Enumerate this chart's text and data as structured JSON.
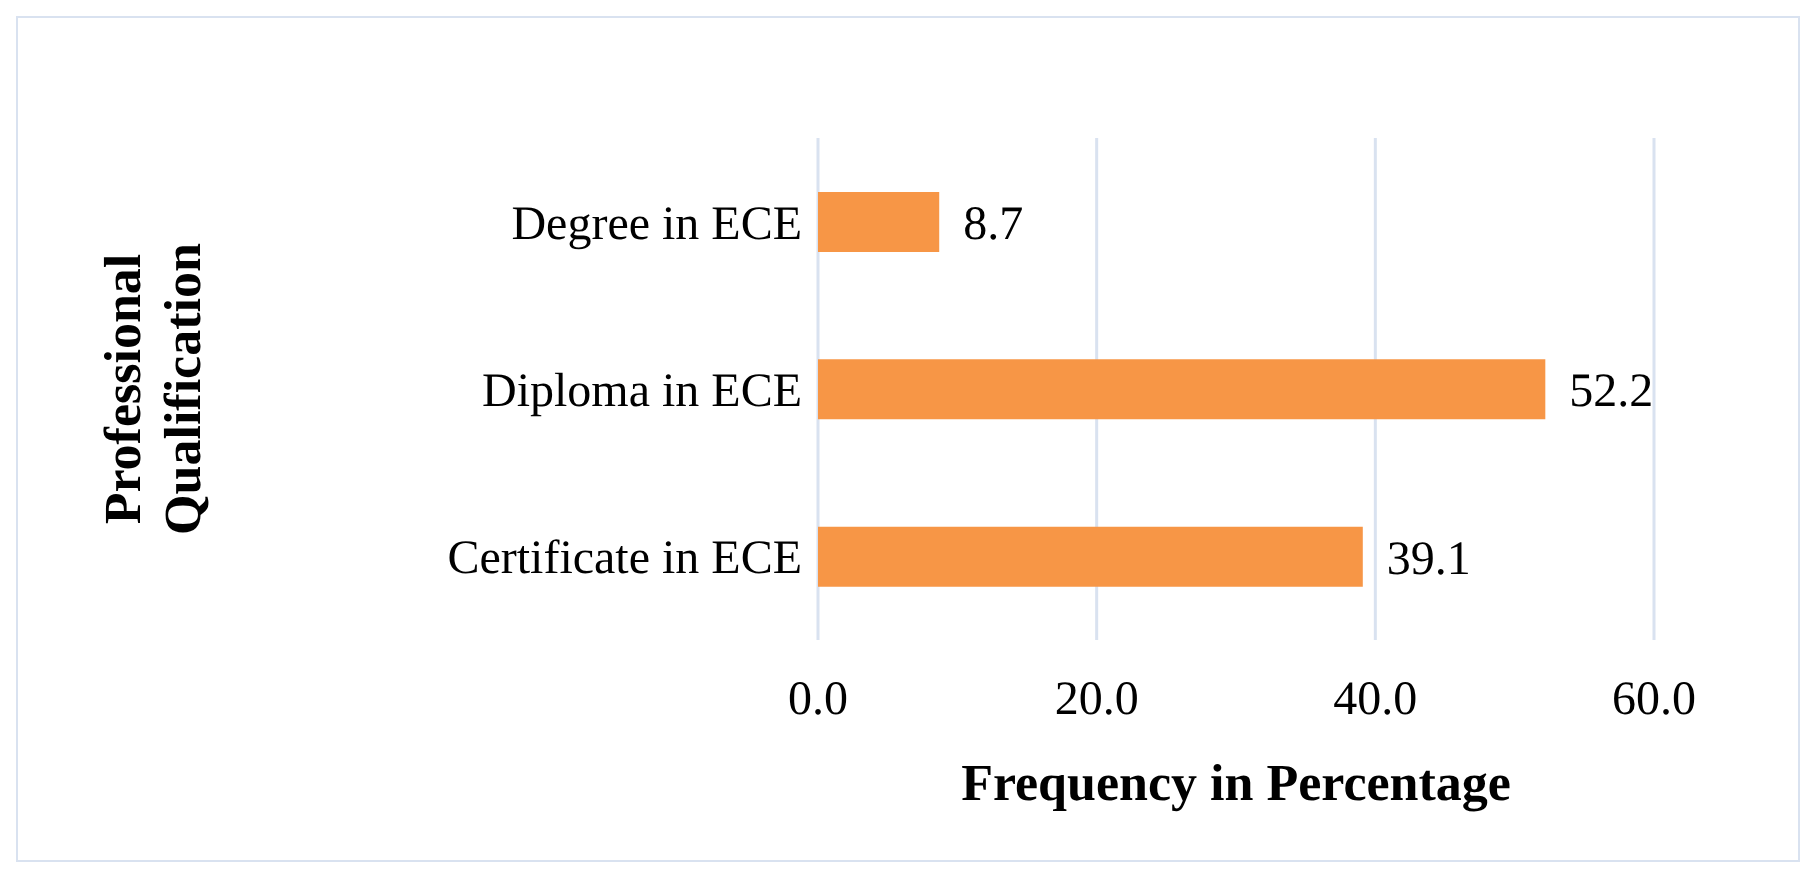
{
  "chart_data": {
    "type": "bar",
    "orientation": "horizontal",
    "xlabel": "Frequency in Percentage",
    "ylabel": "Professional Qualification",
    "categories": [
      "Degree in ECE",
      "Diploma in ECE",
      "Certificate in ECE"
    ],
    "values": [
      8.7,
      52.2,
      39.1
    ],
    "color": "#f79646",
    "xlim": [
      0,
      60
    ],
    "xticks": [
      {
        "value": 0,
        "label": "0.0"
      },
      {
        "value": 20,
        "label": "20.0"
      },
      {
        "value": 40,
        "label": "40.0"
      },
      {
        "value": 60,
        "label": "60.0"
      }
    ],
    "grid": "x",
    "data_labels": true
  }
}
